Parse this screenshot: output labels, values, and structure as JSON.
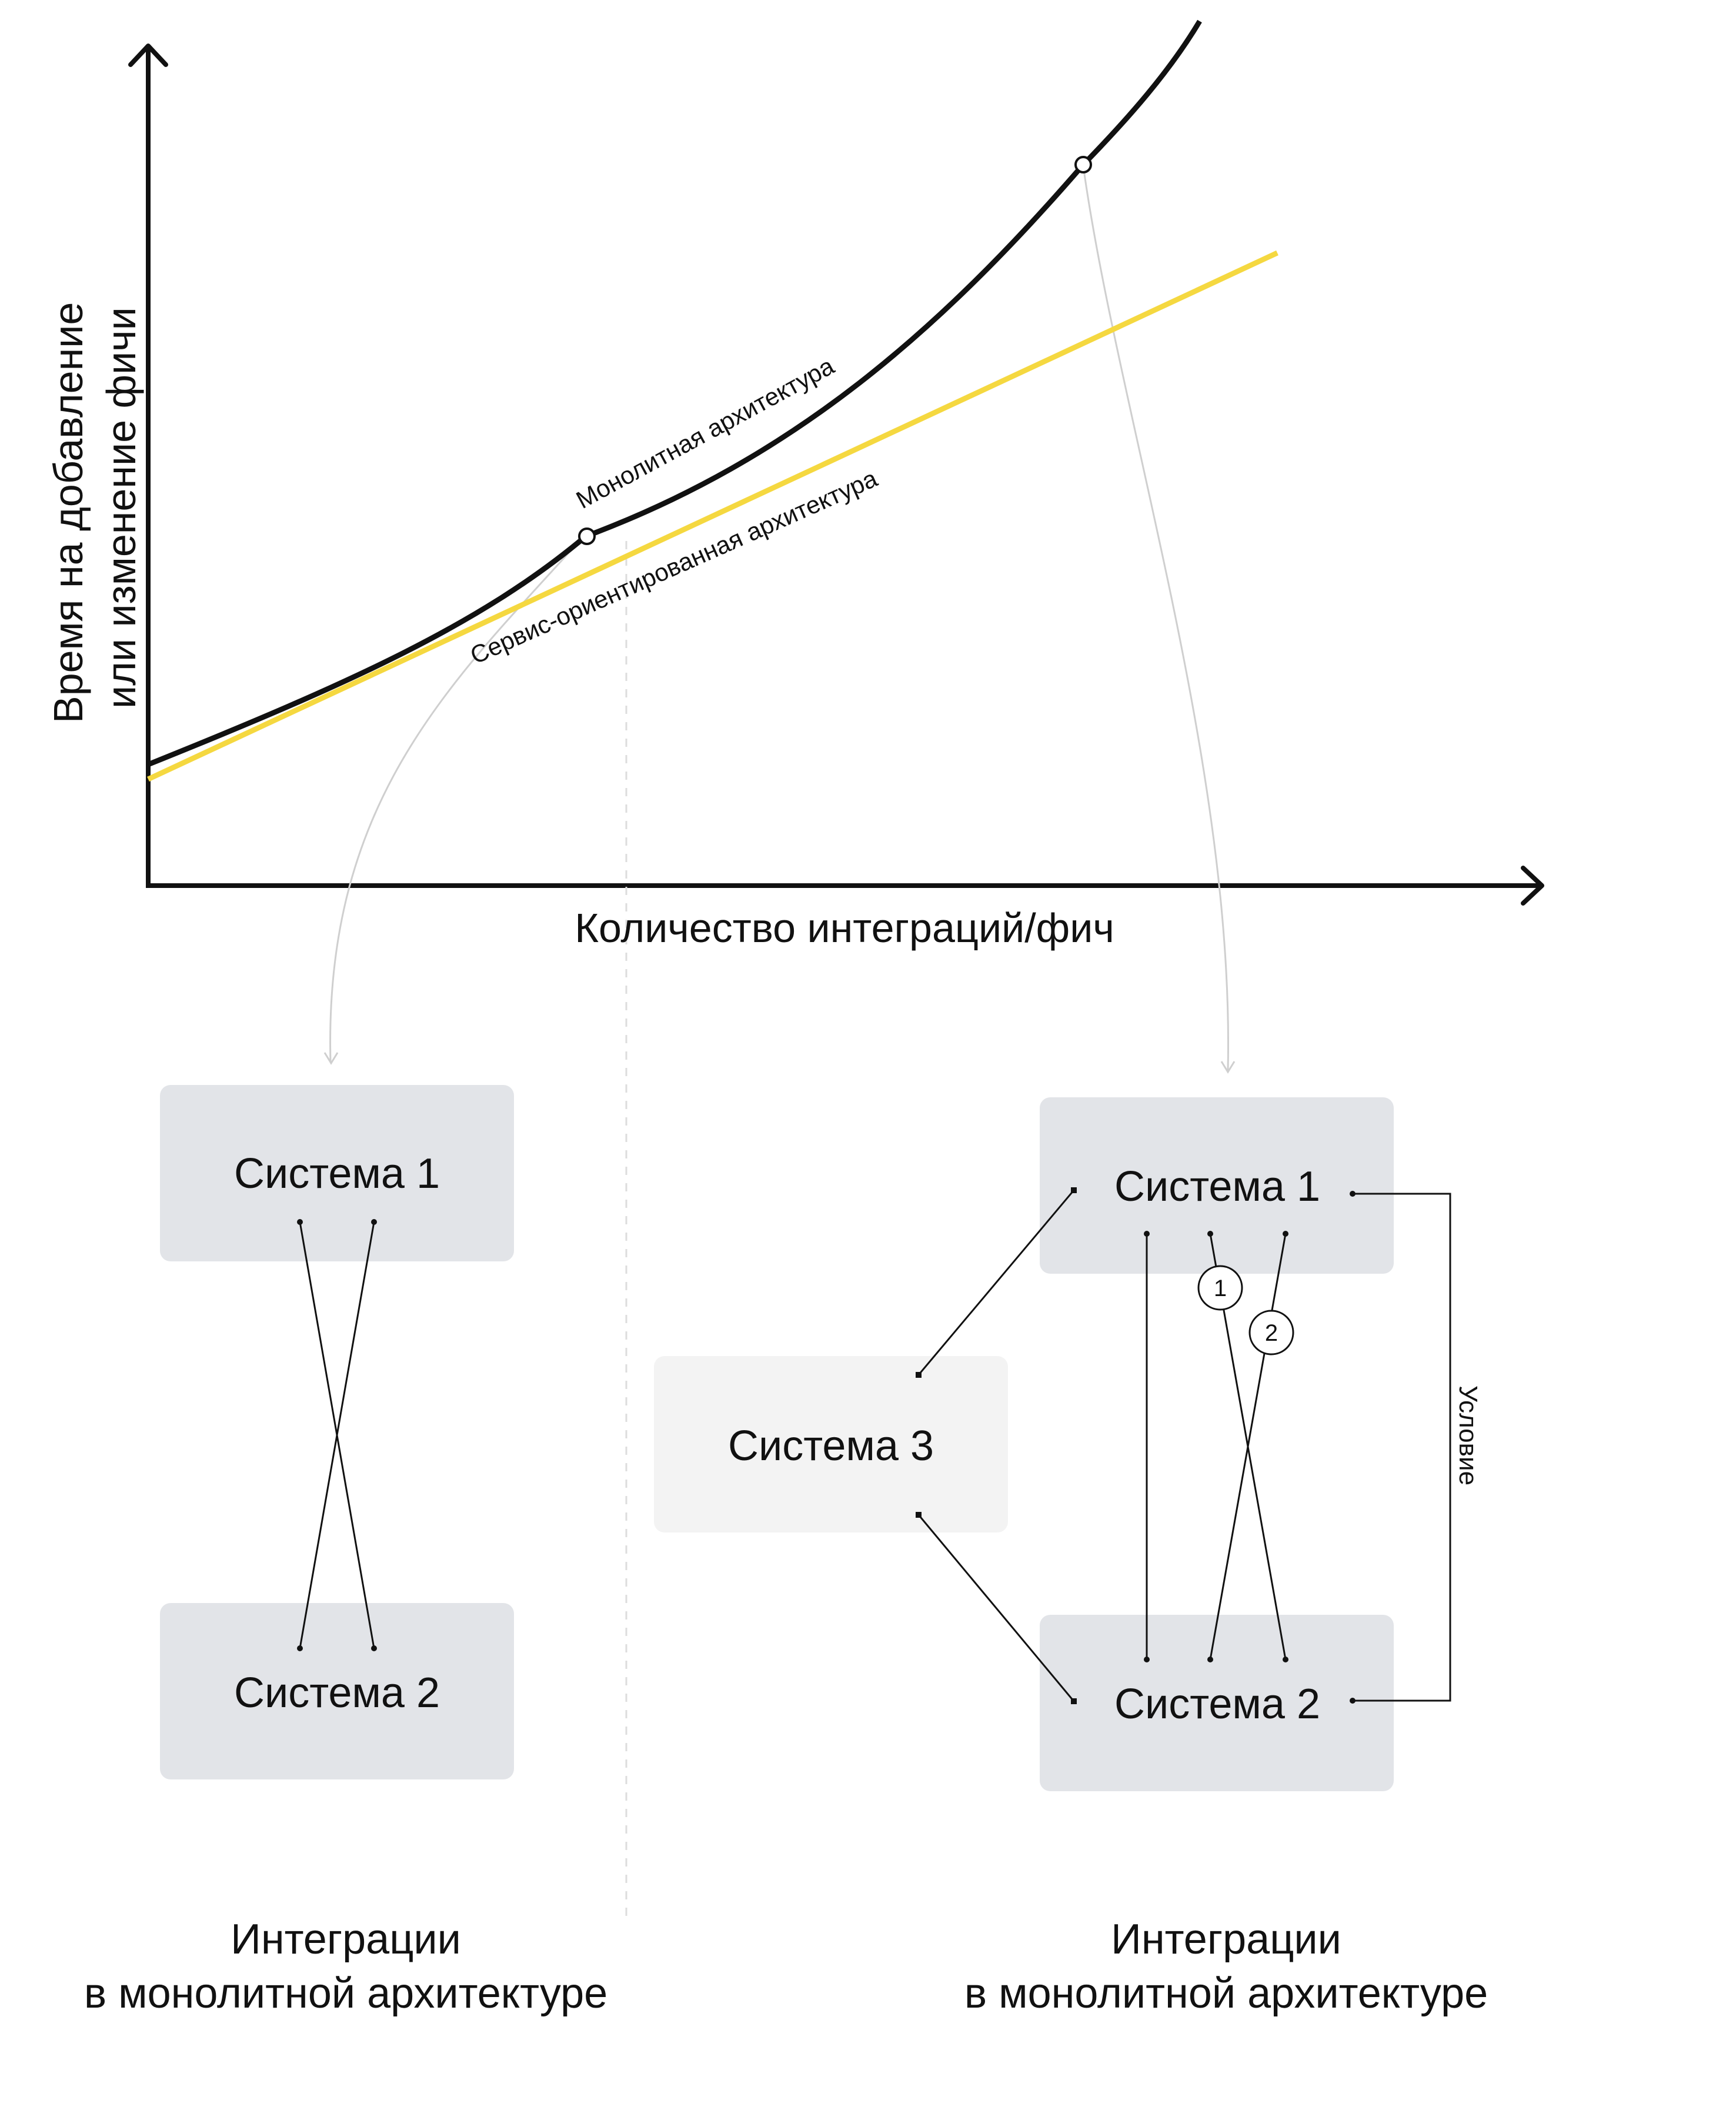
{
  "chart": {
    "y_axis_label_line1": "Время на добавление",
    "y_axis_label_line2": "или изменение фичи",
    "x_axis_label": "Количество интеграций/фич",
    "monolith_curve_label": "Монолитная архитектура",
    "soa_line_label": "Сервис-ориентированная архитектура",
    "colors": {
      "monolith": "#111111",
      "soa": "#f5d840",
      "axis": "#111111",
      "guide": "#cccccc"
    }
  },
  "left_diagram": {
    "box_top": "Система 1",
    "box_bottom": "Система 2",
    "caption_line1": "Интеграции",
    "caption_line2": "в монолитной архитектуре"
  },
  "right_diagram": {
    "box_top": "Система 1",
    "box_bottom": "Система 2",
    "box_middle": "Система 3",
    "badge_1": "1",
    "badge_2": "2",
    "condition_label": "Условие",
    "caption_line1": "Интеграции",
    "caption_line2": "в монолитной архитектуре"
  },
  "colors": {
    "box_gray": "#e2e4e8",
    "box_light": "#f3f3f3",
    "line": "#111111"
  }
}
